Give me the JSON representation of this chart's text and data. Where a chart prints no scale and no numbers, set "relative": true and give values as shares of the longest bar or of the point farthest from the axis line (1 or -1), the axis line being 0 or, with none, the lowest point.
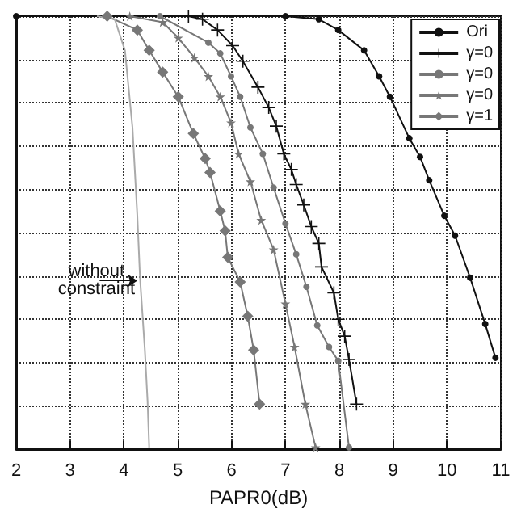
{
  "chart_data": {
    "type": "line",
    "relative": true,
    "xlabel": "PAPR0(dB)",
    "xlim": [
      2,
      11
    ],
    "xticks": [
      2,
      3,
      4,
      5,
      6,
      7,
      8,
      9,
      10,
      11
    ],
    "grid": true,
    "legend": "top right",
    "line_style": "solid",
    "series": [
      {
        "name": "Ori",
        "color": "#111111",
        "marker": "circle",
        "x": [
          2,
          7.0,
          7.62,
          7.98,
          8.46,
          8.74,
          8.94,
          9.3,
          9.5,
          9.67,
          9.95,
          10.15,
          10.43,
          10.71,
          10.9
        ],
        "values": [
          1,
          1,
          0.993,
          0.968,
          0.921,
          0.861,
          0.814,
          0.718,
          0.675,
          0.621,
          0.539,
          0.493,
          0.396,
          0.289,
          0.211
        ]
      },
      {
        "name": "γ=0",
        "color": "#111111",
        "marker": "cross",
        "x": [
          5.2,
          5.46,
          5.74,
          6.02,
          6.21,
          6.49,
          6.69,
          6.83,
          6.97,
          7.11,
          7.2,
          7.34,
          7.48,
          7.62,
          7.67,
          7.9,
          7.98,
          8.1,
          8.18,
          8.32
        ],
        "values": [
          1,
          0.993,
          0.968,
          0.932,
          0.896,
          0.836,
          0.789,
          0.746,
          0.682,
          0.646,
          0.611,
          0.564,
          0.514,
          0.475,
          0.421,
          0.361,
          0.3,
          0.261,
          0.207,
          0.104
        ]
      },
      {
        "name": "γ=0",
        "color": "#777777",
        "marker": "circle",
        "x": [
          4.67,
          5.57,
          5.79,
          5.99,
          6.16,
          6.35,
          6.58,
          6.78,
          7.0,
          7.2,
          7.39,
          7.59,
          7.81,
          7.98,
          8.18
        ],
        "values": [
          1,
          0.939,
          0.914,
          0.861,
          0.814,
          0.743,
          0.682,
          0.604,
          0.521,
          0.45,
          0.375,
          0.286,
          0.236,
          0.204,
          0.004
        ]
      },
      {
        "name": "γ=0",
        "color": "#777777",
        "marker": "star",
        "x": [
          4.11,
          4.72,
          5.01,
          5.31,
          5.57,
          5.79,
          5.99,
          6.13,
          6.35,
          6.55,
          6.78,
          7.0,
          7.17,
          7.37,
          7.56
        ],
        "values": [
          1,
          0.986,
          0.95,
          0.904,
          0.861,
          0.814,
          0.754,
          0.682,
          0.618,
          0.529,
          0.461,
          0.336,
          0.236,
          0.104,
          0.004
        ]
      },
      {
        "name": "γ=1",
        "color": "#777777",
        "marker": "diamond",
        "x": [
          3.69,
          4.25,
          4.47,
          4.72,
          5.01,
          5.29,
          5.51,
          5.6,
          5.79,
          5.88,
          5.93,
          6.16,
          6.3,
          6.41,
          6.52
        ],
        "values": [
          1,
          0.968,
          0.921,
          0.871,
          0.814,
          0.729,
          0.671,
          0.639,
          0.55,
          0.504,
          0.443,
          0.386,
          0.307,
          0.229,
          0.104
        ]
      },
      {
        "color": "#aaaaaa",
        "marker": "none",
        "x": [
          3.5,
          3.83,
          4.02,
          4.16,
          4.25,
          4.3,
          4.39,
          4.44,
          4.47
        ],
        "values": [
          1,
          0.993,
          0.921,
          0.743,
          0.539,
          0.396,
          0.229,
          0.111,
          0.004
        ]
      }
    ],
    "annotations": [
      {
        "text": "without constraint",
        "x": 4.25,
        "y": 0.389
      }
    ]
  }
}
